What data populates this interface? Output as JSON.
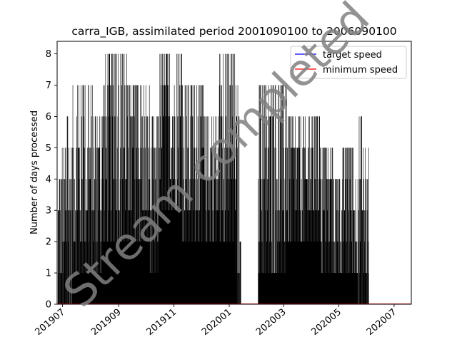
{
  "chart_data": {
    "type": "bar",
    "title": "carra_IGB, assimilated period 2001090100 to 2006090100",
    "xlabel": "",
    "ylabel": "Number of days processed",
    "ylim": [
      0,
      8.4
    ],
    "xlim": [
      "2019-06-25",
      "2020-07-20"
    ],
    "yticks": [
      0,
      1,
      2,
      3,
      4,
      5,
      6,
      7,
      8
    ],
    "xticks": [
      {
        "date": "2019-07-01",
        "label": "201907"
      },
      {
        "date": "2019-09-01",
        "label": "201909"
      },
      {
        "date": "2019-11-01",
        "label": "201911"
      },
      {
        "date": "2020-01-01",
        "label": "202001"
      },
      {
        "date": "2020-03-01",
        "label": "202003"
      },
      {
        "date": "2020-05-01",
        "label": "202005"
      },
      {
        "date": "2020-07-01",
        "label": "202007"
      }
    ],
    "grid": false,
    "legend_position": "upper right",
    "series": [
      {
        "name": "target speed",
        "color": "#0000ff",
        "kind": "line",
        "values_note": ""
      },
      {
        "name": "minimum speed",
        "color": "#ff0000",
        "kind": "line"
      }
    ],
    "bar_color": "#000000",
    "segments": [
      {
        "start": "2019-06-26",
        "end": "2019-07-05",
        "max": 5,
        "min": 0
      },
      {
        "start": "2019-07-05",
        "end": "2019-07-12",
        "max": 6,
        "min": 0
      },
      {
        "start": "2019-07-12",
        "end": "2019-08-05",
        "max": 7,
        "min": 1
      },
      {
        "start": "2019-08-05",
        "end": "2019-08-15",
        "max": 6,
        "min": 1
      },
      {
        "start": "2019-08-15",
        "end": "2019-09-10",
        "max": 8,
        "min": 2
      },
      {
        "start": "2019-09-10",
        "end": "2019-10-05",
        "max": 7,
        "min": 2
      },
      {
        "start": "2019-10-05",
        "end": "2019-10-15",
        "max": 6,
        "min": 1
      },
      {
        "start": "2019-10-15",
        "end": "2019-11-10",
        "max": 8,
        "min": 3
      },
      {
        "start": "2019-11-10",
        "end": "2019-12-05",
        "max": 7,
        "min": 2
      },
      {
        "start": "2019-12-05",
        "end": "2019-12-20",
        "max": 6,
        "min": 2
      },
      {
        "start": "2019-12-20",
        "end": "2020-01-08",
        "max": 8,
        "min": 2
      },
      {
        "start": "2020-01-08",
        "end": "2020-01-12",
        "max": 7,
        "min": 0
      },
      {
        "start": "2020-01-12",
        "end": "2020-01-14",
        "max": 2,
        "min": 0
      },
      {
        "start": "2020-02-02",
        "end": "2020-03-05",
        "max": 7,
        "min": 1
      },
      {
        "start": "2020-03-05",
        "end": "2020-04-10",
        "max": 6,
        "min": 2
      },
      {
        "start": "2020-04-10",
        "end": "2020-04-25",
        "max": 5,
        "min": 1
      },
      {
        "start": "2020-04-25",
        "end": "2020-05-05",
        "max": 4,
        "min": 1
      },
      {
        "start": "2020-05-05",
        "end": "2020-05-22",
        "max": 5,
        "min": 1
      },
      {
        "start": "2020-05-22",
        "end": "2020-05-30",
        "max": 6,
        "min": 0
      },
      {
        "start": "2020-05-30",
        "end": "2020-06-03",
        "max": 5,
        "min": 0
      }
    ]
  },
  "watermark": "Stream completed"
}
